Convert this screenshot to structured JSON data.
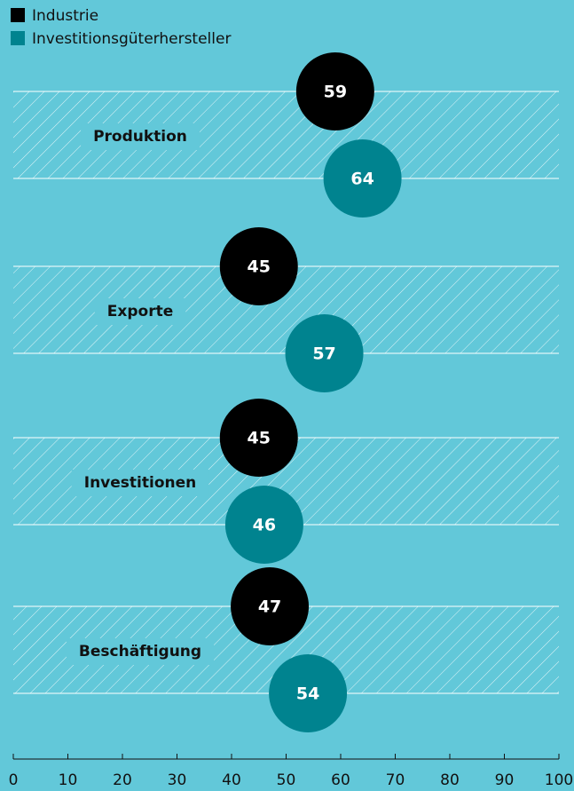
{
  "chart_data": {
    "type": "dot",
    "categories": [
      "Produktion",
      "Exporte",
      "Investitionen",
      "Beschäftigung"
    ],
    "series": [
      {
        "name": "Industrie",
        "color": "#000000",
        "values": [
          59,
          45,
          45,
          47
        ]
      },
      {
        "name": "Investitionsgüterhersteller",
        "color": "#00838f",
        "values": [
          64,
          57,
          46,
          54
        ]
      }
    ],
    "xlim": [
      0,
      100
    ],
    "xticks": [
      0,
      10,
      20,
      30,
      40,
      50,
      60,
      70,
      80,
      90,
      100
    ]
  }
}
